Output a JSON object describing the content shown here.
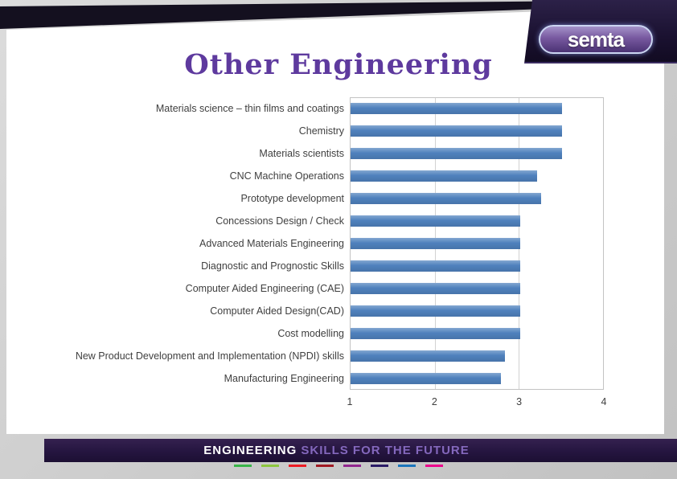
{
  "slide": {
    "title": "Other Engineering"
  },
  "logo": {
    "text": "semta"
  },
  "footer": {
    "heading_primary": "ENGINEERING",
    "heading_secondary": " SKILLS FOR THE FUTURE",
    "stripe_colors": [
      "#39b54a",
      "#8dc63f",
      "#ed1c24",
      "#a01922",
      "#92278f",
      "#2b1b67",
      "#1b75bc",
      "#ec008c"
    ]
  },
  "colors": {
    "title": "#5e3a9e",
    "footer_primary": "#ffffff",
    "footer_secondary": "#8468bd",
    "plot_border": "#c3c3c3"
  },
  "chart_data": {
    "type": "bar",
    "orientation": "horizontal",
    "title": "",
    "xlabel": "",
    "ylabel": "",
    "categories": [
      "Materials science – thin films and coatings",
      "Chemistry",
      "Materials scientists",
      "CNC Machine Operations",
      "Prototype development",
      "Concessions Design / Check",
      "Advanced Materials Engineering",
      "Diagnostic and Prognostic Skills",
      "Computer Aided Engineering (CAE)",
      "Computer Aided Design(CAD)",
      "Cost modelling",
      "New Product Development and Implementation (NPDI) skills",
      "Manufacturing Engineering"
    ],
    "values": [
      3.5,
      3.5,
      3.5,
      3.2,
      3.25,
      3.0,
      3.0,
      3.0,
      3.0,
      3.0,
      3.0,
      2.82,
      2.78
    ],
    "xlim": [
      1,
      4
    ],
    "x_ticks": [
      1,
      2,
      3,
      4
    ],
    "bar_color": "#4f81bd",
    "grid": true,
    "legend": false
  }
}
